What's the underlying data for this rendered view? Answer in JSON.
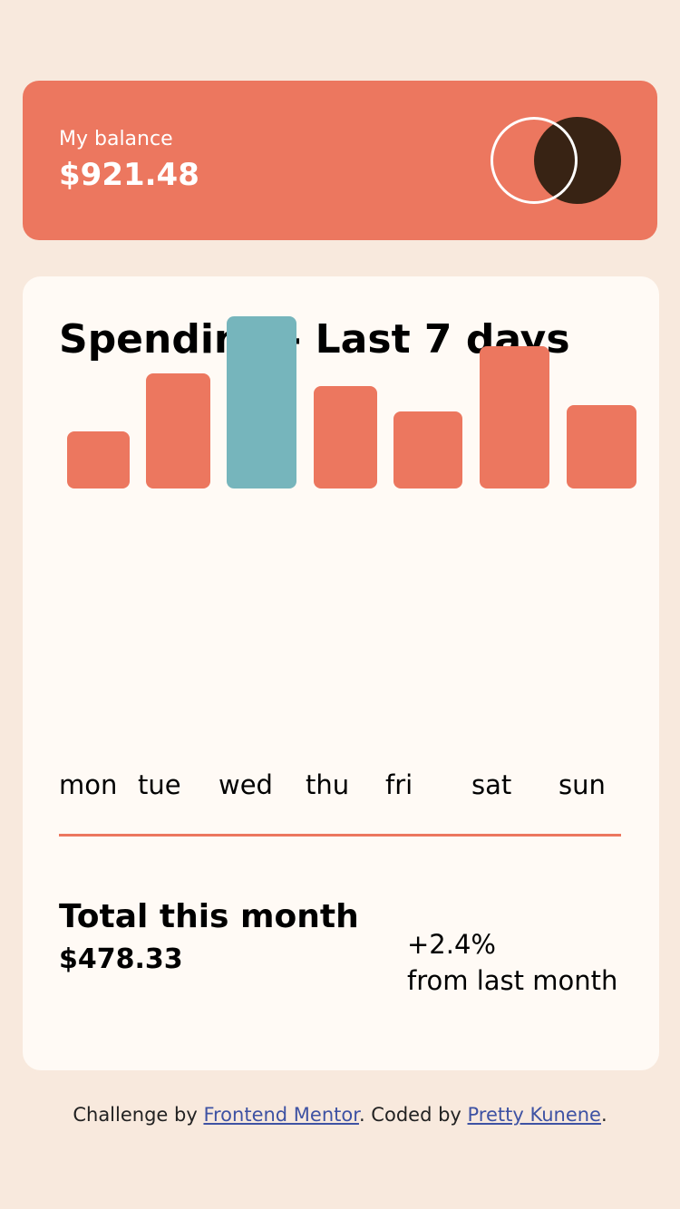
{
  "balance": {
    "label": "My balance",
    "amount": "$921.48"
  },
  "spending": {
    "title": "Spending - Last 7 days",
    "highlight_color": "#76b5bc",
    "bar_color": "#ec775f"
  },
  "chart_data": {
    "type": "bar",
    "categories": [
      "mon",
      "tue",
      "wed",
      "thu",
      "fri",
      "sat",
      "sun"
    ],
    "values": [
      17.45,
      34.91,
      52.36,
      31.07,
      23.39,
      43.28,
      25.48
    ],
    "highlighted": "wed"
  },
  "total": {
    "label": "Total this month",
    "amount": "$478.33",
    "change": "+2.4%",
    "change_label": "from last month"
  },
  "footer": {
    "prefix": "Challenge by ",
    "link1": "Frontend Mentor",
    "middle": ". Coded by ",
    "link2": "Pretty Kunene",
    "suffix": "."
  }
}
